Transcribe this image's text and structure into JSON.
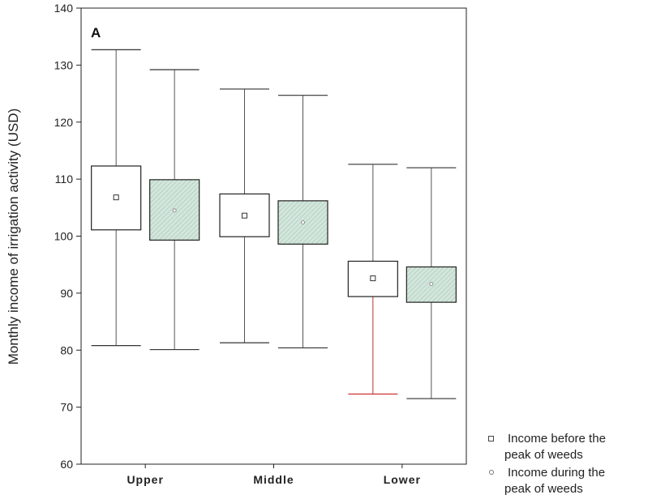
{
  "chart_data": {
    "type": "boxplot",
    "panel_label": "A",
    "ylabel": "Monthly income of irrigation activity (USD)",
    "xlabel": "",
    "ylim": [
      60,
      140
    ],
    "yticks": [
      60,
      70,
      80,
      90,
      100,
      110,
      120,
      130,
      140
    ],
    "categories": [
      "Upper",
      "Middle",
      "Lower"
    ],
    "grid": false,
    "legend_position": "bottom-right",
    "series": [
      {
        "name": "Income before the peak of weeds",
        "color": "#ffffff",
        "marker": "square",
        "boxes": [
          {
            "whisker_low": 80.8,
            "q1": 101.1,
            "center": 106.8,
            "q3": 112.3,
            "whisker_high": 132.7
          },
          {
            "whisker_low": 81.3,
            "q1": 99.9,
            "center": 103.6,
            "q3": 107.4,
            "whisker_high": 125.8
          },
          {
            "whisker_low": 72.3,
            "q1": 89.4,
            "center": 92.6,
            "q3": 95.6,
            "whisker_high": 112.6
          }
        ]
      },
      {
        "name": "Income during the peak of weeds",
        "color": "#cfe3d8",
        "marker": "circle",
        "boxes": [
          {
            "whisker_low": 80.1,
            "q1": 99.3,
            "center": 104.5,
            "q3": 109.9,
            "whisker_high": 129.2
          },
          {
            "whisker_low": 80.4,
            "q1": 98.6,
            "center": 102.4,
            "q3": 106.2,
            "whisker_high": 124.7
          },
          {
            "whisker_low": 71.5,
            "q1": 88.4,
            "center": 91.6,
            "q3": 94.6,
            "whisker_high": 112.0
          }
        ]
      }
    ]
  },
  "legend": {
    "items": [
      {
        "line1": "Income before  the",
        "line2": "peak of weeds"
      },
      {
        "line1": "Income during  the",
        "line2": "peak of weeds"
      }
    ]
  }
}
